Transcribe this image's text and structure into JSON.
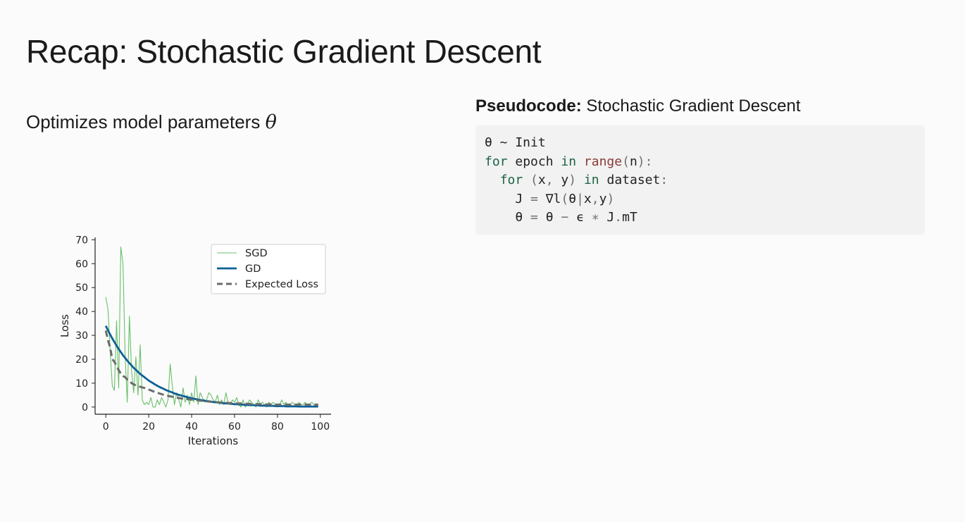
{
  "slide": {
    "title": "Recap: Stochastic Gradient Descent",
    "subtitle_text": "Optimizes model parameters ",
    "subtitle_symbol": "θ"
  },
  "pseudocode": {
    "heading_bold": "Pseudocode:",
    "heading_rest": " Stochastic Gradient Descent",
    "lines": [
      [
        {
          "t": "θ ~ Init",
          "c": ""
        }
      ],
      [
        {
          "t": "for",
          "c": "kw"
        },
        {
          "t": " epoch ",
          "c": ""
        },
        {
          "t": "in",
          "c": "kw"
        },
        {
          "t": " ",
          "c": ""
        },
        {
          "t": "range",
          "c": "fn"
        },
        {
          "t": "(",
          "c": "op"
        },
        {
          "t": "n",
          "c": ""
        },
        {
          "t": "):",
          "c": "op"
        }
      ],
      [
        {
          "t": "  ",
          "c": ""
        },
        {
          "t": "for",
          "c": "kw"
        },
        {
          "t": " ",
          "c": ""
        },
        {
          "t": "(",
          "c": "op"
        },
        {
          "t": "x",
          "c": ""
        },
        {
          "t": ",",
          "c": "op"
        },
        {
          "t": " y",
          "c": ""
        },
        {
          "t": ")",
          "c": "op"
        },
        {
          "t": " ",
          "c": ""
        },
        {
          "t": "in",
          "c": "kw"
        },
        {
          "t": " dataset",
          "c": ""
        },
        {
          "t": ":",
          "c": "op"
        }
      ],
      [
        {
          "t": "    J ",
          "c": ""
        },
        {
          "t": "=",
          "c": "op"
        },
        {
          "t": " ∇l",
          "c": ""
        },
        {
          "t": "(",
          "c": "op"
        },
        {
          "t": "θ",
          "c": ""
        },
        {
          "t": "|",
          "c": "op"
        },
        {
          "t": "x",
          "c": ""
        },
        {
          "t": ",",
          "c": "op"
        },
        {
          "t": "y",
          "c": ""
        },
        {
          "t": ")",
          "c": "op"
        }
      ],
      [
        {
          "t": "    θ ",
          "c": ""
        },
        {
          "t": "=",
          "c": "op"
        },
        {
          "t": " θ ",
          "c": ""
        },
        {
          "t": "−",
          "c": "op"
        },
        {
          "t": " ϵ ",
          "c": ""
        },
        {
          "t": "∗",
          "c": "op"
        },
        {
          "t": " J",
          "c": ""
        },
        {
          "t": ".",
          "c": "op"
        },
        {
          "t": "mT",
          "c": ""
        }
      ]
    ]
  },
  "chart_data": {
    "type": "line",
    "title": "",
    "xlabel": "Iterations",
    "ylabel": "Loss",
    "xlim": [
      -5,
      105
    ],
    "ylim": [
      -3,
      71
    ],
    "xticks": [
      "0",
      "20",
      "40",
      "60",
      "80",
      "100"
    ],
    "yticks": [
      "0",
      "10",
      "20",
      "30",
      "40",
      "50",
      "60",
      "70"
    ],
    "legend_position": "top-right",
    "grid": false,
    "x": [
      0,
      1,
      2,
      3,
      4,
      5,
      6,
      7,
      8,
      9,
      10,
      11,
      12,
      13,
      14,
      15,
      16,
      17,
      18,
      19,
      20,
      21,
      22,
      23,
      24,
      25,
      26,
      27,
      28,
      29,
      30,
      31,
      32,
      33,
      34,
      35,
      36,
      37,
      38,
      39,
      40,
      41,
      42,
      43,
      44,
      45,
      46,
      47,
      48,
      49,
      50,
      51,
      52,
      53,
      54,
      55,
      56,
      57,
      58,
      59,
      60,
      61,
      62,
      63,
      64,
      65,
      66,
      67,
      68,
      69,
      70,
      71,
      72,
      73,
      74,
      75,
      76,
      77,
      78,
      79,
      80,
      81,
      82,
      83,
      84,
      85,
      86,
      87,
      88,
      89,
      90,
      91,
      92,
      93,
      94,
      95,
      96,
      97,
      98,
      99
    ],
    "series": [
      {
        "name": "SGD",
        "color": "#6bbf6b",
        "style": "solid-thin",
        "values": [
          46,
          41,
          24,
          9,
          7,
          36,
          8,
          67,
          60,
          22,
          2,
          38,
          15,
          6,
          21,
          5,
          26,
          3,
          1,
          2,
          1,
          4,
          0,
          0,
          3,
          1,
          4,
          2,
          0,
          3,
          18,
          9,
          1,
          6,
          3,
          0,
          8,
          2,
          5,
          1,
          6,
          2,
          13,
          1,
          6,
          4,
          2,
          3,
          6,
          5,
          3,
          2,
          5,
          1,
          3,
          1,
          6,
          2,
          1,
          3,
          2,
          4,
          1,
          0,
          3,
          0,
          1,
          3,
          2,
          1,
          0,
          3,
          1,
          2,
          1,
          0,
          2,
          1,
          2,
          1,
          0,
          1,
          3,
          1,
          2,
          0,
          1,
          2,
          1,
          0,
          2,
          1,
          1,
          2,
          0,
          1,
          2,
          1,
          0,
          1
        ]
      },
      {
        "name": "GD",
        "color": "#0d6097",
        "style": "solid-thick",
        "values": [
          34,
          32.1,
          30.4,
          28.7,
          27.2,
          25.7,
          24.3,
          23,
          21.7,
          20.6,
          19.4,
          18.4,
          17.4,
          16.4,
          15.6,
          14.7,
          13.9,
          13.2,
          12.5,
          11.8,
          11.1,
          10.5,
          10,
          9.4,
          8.9,
          8.4,
          8,
          7.6,
          7.1,
          6.8,
          6.4,
          6.1,
          5.7,
          5.4,
          5.1,
          4.9,
          4.6,
          4.4,
          4.1,
          3.9,
          3.7,
          3.5,
          3.3,
          3.1,
          3,
          2.8,
          2.7,
          2.5,
          2.4,
          2.3,
          2.1,
          2,
          1.9,
          1.8,
          1.7,
          1.6,
          1.5,
          1.5,
          1.4,
          1.3,
          1.2,
          1.2,
          1.1,
          1,
          1,
          0.9,
          0.9,
          0.8,
          0.8,
          0.8,
          0.7,
          0.7,
          0.6,
          0.6,
          0.6,
          0.5,
          0.5,
          0.5,
          0.5,
          0.4,
          0.4,
          0.4,
          0.4,
          0.4,
          0.3,
          0.3,
          0.3,
          0.3,
          0.3,
          0.3,
          0.2,
          0.2,
          0.2,
          0.2,
          0.2,
          0.2,
          0.2,
          0.2,
          0.2,
          0.2
        ]
      },
      {
        "name": "Expected Loss",
        "color": "#6b6b6b",
        "style": "dashed",
        "values": [
          32,
          28,
          25,
          20,
          19,
          17,
          15.5,
          14,
          13,
          12.5,
          11.5,
          11,
          10,
          9.5,
          9,
          8.8,
          8.5,
          8.2,
          8,
          7.6,
          7.3,
          7,
          6.6,
          6.3,
          6,
          5.7,
          5.4,
          5.1,
          4.9,
          4.7,
          4.5,
          4.3,
          4.1,
          3.9,
          3.8,
          3.6,
          3.5,
          3.4,
          3.3,
          3.2,
          3.1,
          3,
          2.9,
          2.8,
          2.7,
          2.6,
          2.5,
          2.4,
          2.3,
          2.2,
          2.1,
          2,
          2,
          1.9,
          1.9,
          1.8,
          1.8,
          1.7,
          1.7,
          1.6,
          1.6,
          1.5,
          1.5,
          1.5,
          1.4,
          1.4,
          1.4,
          1.3,
          1.3,
          1.3,
          1.2,
          1.2,
          1.2,
          1.2,
          1.1,
          1.1,
          1.1,
          1.1,
          1.1,
          1,
          1,
          1,
          1,
          1,
          1,
          1,
          1,
          1,
          1,
          1,
          1,
          1,
          1,
          1,
          1,
          1,
          1,
          1,
          1,
          1
        ]
      }
    ]
  }
}
